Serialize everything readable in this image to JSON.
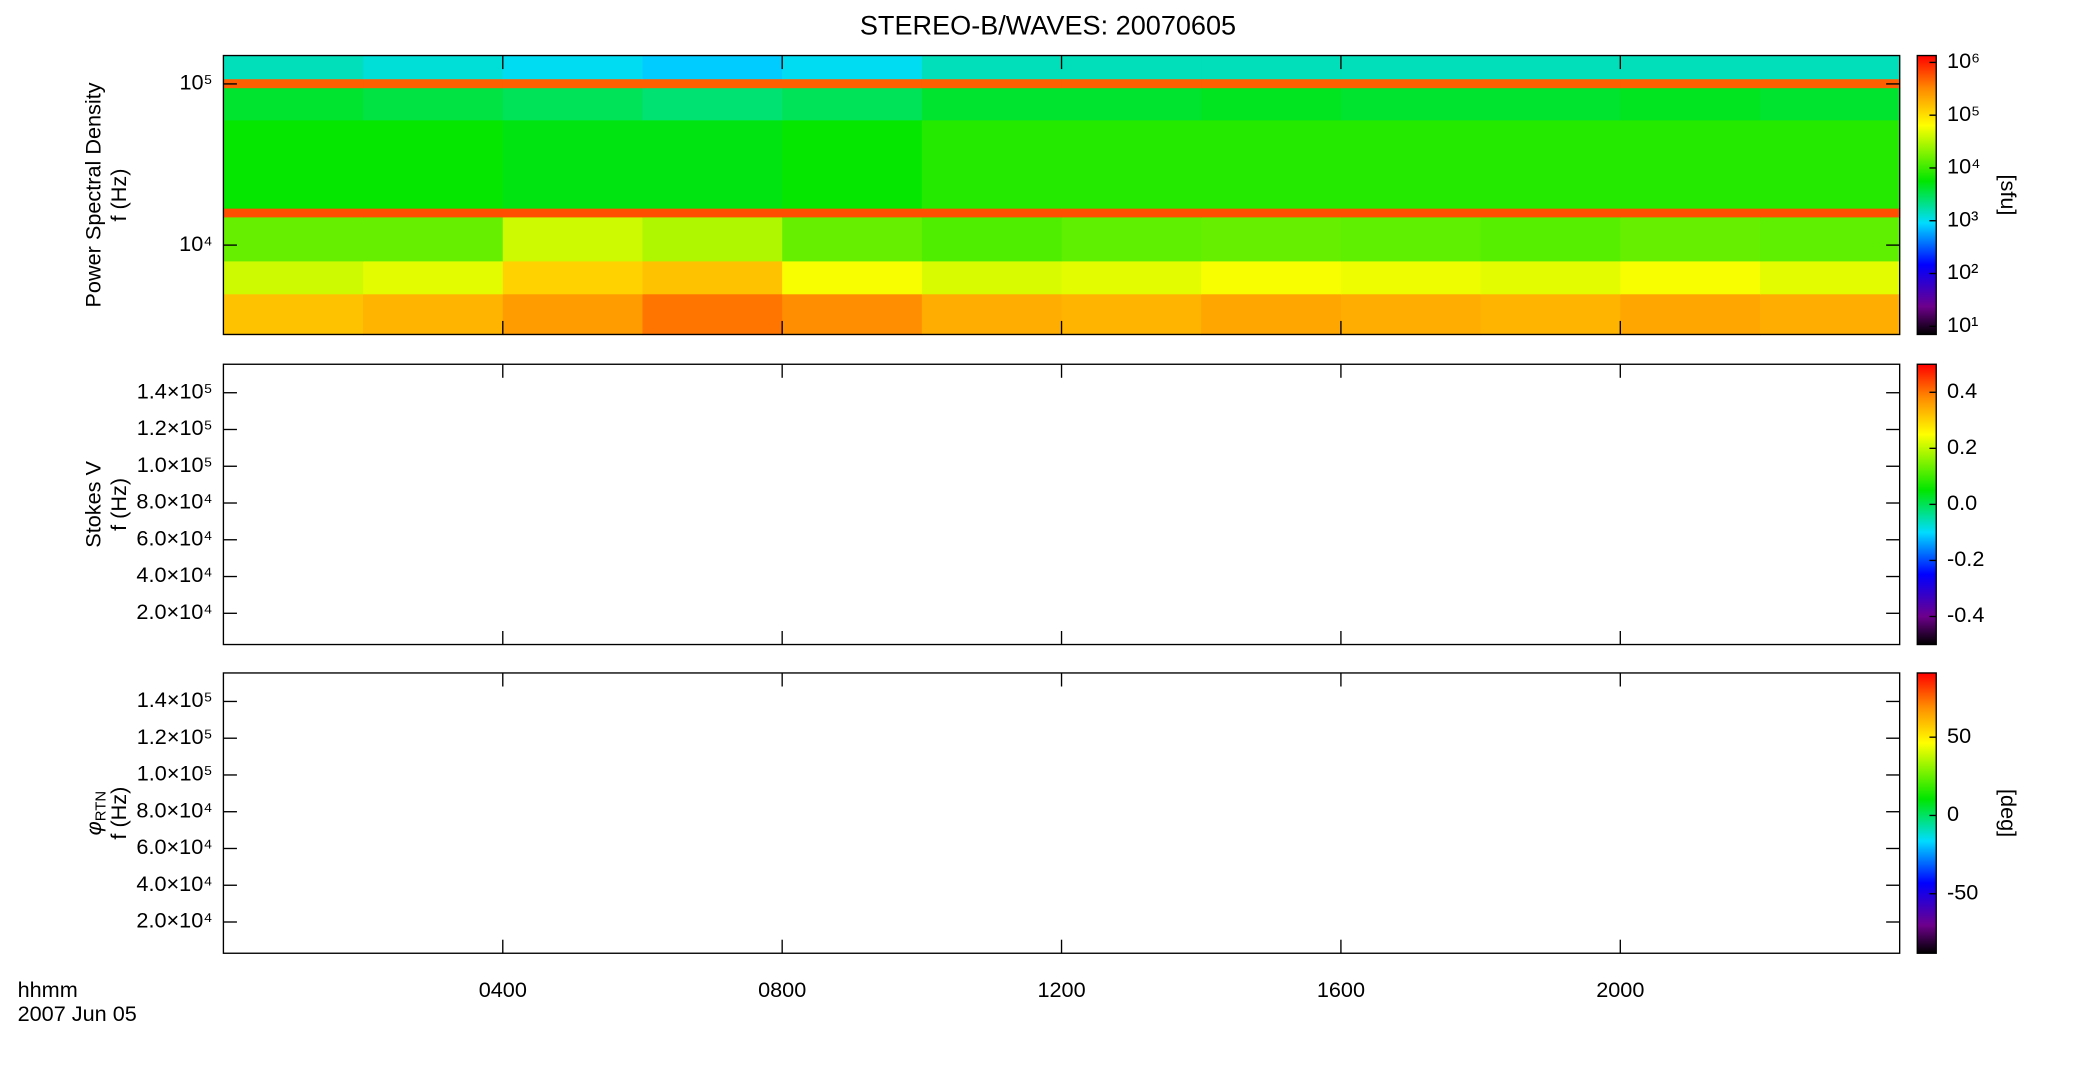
{
  "chart_data": [
    {
      "type": "heatmap",
      "title": "STEREO-B/WAVES: 20070605",
      "ylabel_lines": [
        "Power Spectral Density",
        "f (Hz)"
      ],
      "x": [
        0,
        2,
        4,
        6,
        8,
        10,
        12,
        14,
        16,
        18,
        20,
        22,
        24
      ],
      "y": [
        2790,
        5000,
        8000,
        15000,
        17000,
        60000,
        95000,
        108000,
        150000
      ],
      "z": [
        [
          150000,
          180000,
          250000,
          400000,
          300000,
          200000,
          180000,
          220000,
          200000,
          180000,
          220000,
          200000
        ],
        [
          40000,
          50000,
          120000,
          150000,
          60000,
          45000,
          50000,
          60000,
          55000,
          50000,
          60000,
          50000
        ],
        [
          15000,
          15000,
          40000,
          30000,
          15000,
          12000,
          14000,
          15000,
          14000,
          13000,
          15000,
          14000
        ],
        [
          600000,
          600000,
          600000,
          600000,
          600000,
          600000,
          600000,
          600000,
          600000,
          600000,
          600000,
          600000
        ],
        [
          6000,
          6000,
          5000,
          5000,
          6000,
          8000,
          8000,
          8000,
          8000,
          8000,
          8000,
          8000
        ],
        [
          4000,
          3500,
          3000,
          2500,
          3000,
          4000,
          4000,
          4500,
          4000,
          4000,
          4500,
          4000
        ],
        [
          500000,
          500000,
          500000,
          500000,
          500000,
          500000,
          500000,
          500000,
          500000,
          500000,
          500000,
          500000
        ],
        [
          1500,
          1200,
          1000,
          800,
          1000,
          1500,
          1500,
          1500,
          1500,
          1500,
          1500,
          1500
        ]
      ],
      "xlim": [
        0,
        24
      ],
      "ylim": [
        2790,
        150000
      ],
      "ylog": true,
      "yticks": [
        {
          "value": 10000,
          "label": "10⁴"
        },
        {
          "value": 100000,
          "label": "10⁵"
        }
      ],
      "colormap": "rainbow",
      "zlog": true,
      "zlim": [
        7,
        1350000
      ],
      "zticks": [
        {
          "value": 10,
          "label": "10¹"
        },
        {
          "value": 100,
          "label": "10²"
        },
        {
          "value": 1000,
          "label": "10³"
        },
        {
          "value": 10000,
          "label": "10⁴"
        },
        {
          "value": 100000,
          "label": "10⁵"
        },
        {
          "value": 1000000,
          "label": "10⁶"
        }
      ],
      "zlabel": "[sfu]"
    },
    {
      "type": "heatmap",
      "ylabel_lines": [
        "Stokes V",
        "f (Hz)"
      ],
      "xlim": [
        0,
        24
      ],
      "ylim": [
        3000,
        155500
      ],
      "yticks": [
        {
          "value": 20000,
          "label": "2.0×10⁴"
        },
        {
          "value": 40000,
          "label": "4.0×10⁴"
        },
        {
          "value": 60000,
          "label": "6.0×10⁴"
        },
        {
          "value": 80000,
          "label": "8.0×10⁴"
        },
        {
          "value": 100000,
          "label": "1.0×10⁵"
        },
        {
          "value": 120000,
          "label": "1.2×10⁵"
        },
        {
          "value": 140000,
          "label": "1.4×10⁵"
        }
      ],
      "colormap": "rainbow",
      "zlim": [
        -0.5,
        0.5
      ],
      "zticks": [
        -0.4,
        -0.2,
        {
          "value": 0,
          "label": "0.0"
        },
        0.2,
        0.4
      ]
    },
    {
      "type": "heatmap",
      "ylabel_lines": [
        {
          "text": "φ",
          "sub": "RTN"
        },
        "f (Hz)"
      ],
      "xlim": [
        0,
        24
      ],
      "ylim": [
        3000,
        155500
      ],
      "yticks": [
        {
          "value": 20000,
          "label": "2.0×10⁴"
        },
        {
          "value": 40000,
          "label": "4.0×10⁴"
        },
        {
          "value": 60000,
          "label": "6.0×10⁴"
        },
        {
          "value": 80000,
          "label": "8.0×10⁴"
        },
        {
          "value": 100000,
          "label": "1.0×10⁵"
        },
        {
          "value": 120000,
          "label": "1.2×10⁵"
        },
        {
          "value": 140000,
          "label": "1.4×10⁵"
        }
      ],
      "xticks": [
        {
          "value": 4,
          "label": "0400"
        },
        {
          "value": 8,
          "label": "0800"
        },
        {
          "value": 12,
          "label": "1200"
        },
        {
          "value": 16,
          "label": "1600"
        },
        {
          "value": 20,
          "label": "2000"
        }
      ],
      "xlabel": "hhmm",
      "date": "2007 Jun 05",
      "colormap": "rainbow",
      "zlim": [
        -88,
        91
      ],
      "zticks": [
        -50,
        0,
        50
      ],
      "zlabel": "[deg]"
    }
  ]
}
